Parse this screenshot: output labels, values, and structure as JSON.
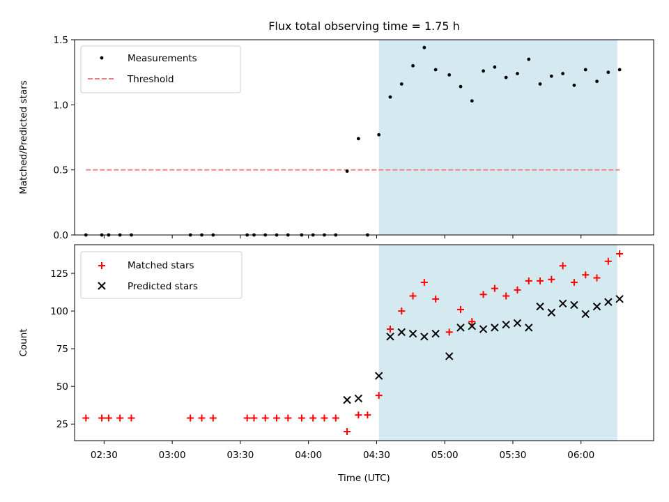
{
  "chart_data": [
    {
      "type": "scatter",
      "title": "Flux total observing time = 1.75 h",
      "xlabel": "",
      "ylabel": "Matched/Predicted stars",
      "xlim": [
        "02:17",
        "06:32"
      ],
      "ylim": [
        0,
        1.5
      ],
      "yticks": [
        "0.0",
        "0.5",
        "1.0",
        "1.5"
      ],
      "shaded_region": [
        "04:31",
        "06:16"
      ],
      "shade_color": "#d4eaf0",
      "legend_position": "upper left",
      "series": [
        {
          "name": "Measurements",
          "marker": "dot",
          "color": "#000000",
          "points": [
            [
              "02:22",
              0
            ],
            [
              "02:29",
              0
            ],
            [
              "02:32",
              0
            ],
            [
              "02:37",
              0
            ],
            [
              "02:42",
              0
            ],
            [
              "03:08",
              0
            ],
            [
              "03:13",
              0
            ],
            [
              "03:18",
              0
            ],
            [
              "03:33",
              0
            ],
            [
              "03:36",
              0
            ],
            [
              "03:41",
              0
            ],
            [
              "03:46",
              0
            ],
            [
              "03:51",
              0
            ],
            [
              "03:57",
              0
            ],
            [
              "04:02",
              0
            ],
            [
              "04:07",
              0
            ],
            [
              "04:12",
              0
            ],
            [
              "04:17",
              0.49
            ],
            [
              "04:22",
              0.74
            ],
            [
              "04:26",
              0.0
            ],
            [
              "04:31",
              0.77
            ],
            [
              "04:36",
              1.06
            ],
            [
              "04:41",
              1.16
            ],
            [
              "04:46",
              1.3
            ],
            [
              "04:51",
              1.44
            ],
            [
              "04:56",
              1.27
            ],
            [
              "05:02",
              1.23
            ],
            [
              "05:07",
              1.14
            ],
            [
              "05:12",
              1.03
            ],
            [
              "05:17",
              1.26
            ],
            [
              "05:22",
              1.29
            ],
            [
              "05:27",
              1.21
            ],
            [
              "05:32",
              1.24
            ],
            [
              "05:37",
              1.35
            ],
            [
              "05:42",
              1.16
            ],
            [
              "05:47",
              1.22
            ],
            [
              "05:52",
              1.24
            ],
            [
              "05:57",
              1.15
            ],
            [
              "06:02",
              1.27
            ],
            [
              "06:07",
              1.18
            ],
            [
              "06:12",
              1.25
            ],
            [
              "06:17",
              1.27
            ]
          ]
        },
        {
          "name": "Threshold",
          "marker": "dashed-line",
          "color": "#f08080",
          "points": [
            [
              "02:22",
              0.5
            ],
            [
              "06:17",
              0.5
            ]
          ]
        }
      ]
    },
    {
      "type": "scatter",
      "title": "",
      "xlabel": "Time (UTC)",
      "ylabel": "Count",
      "xlim": [
        "02:17",
        "06:32"
      ],
      "ylim": [
        14,
        144
      ],
      "yticks": [
        "25",
        "50",
        "75",
        "100",
        "125"
      ],
      "xticks": [
        "02:30",
        "03:00",
        "03:30",
        "04:00",
        "04:30",
        "05:00",
        "05:30",
        "06:00"
      ],
      "shaded_region": [
        "04:31",
        "06:16"
      ],
      "shade_color": "#d4eaf0",
      "legend_position": "upper left",
      "series": [
        {
          "name": "Matched stars",
          "marker": "plus",
          "color": "#ff0000",
          "points": [
            [
              "02:22",
              29
            ],
            [
              "02:29",
              29
            ],
            [
              "02:32",
              29
            ],
            [
              "02:37",
              29
            ],
            [
              "02:42",
              29
            ],
            [
              "03:08",
              29
            ],
            [
              "03:13",
              29
            ],
            [
              "03:18",
              29
            ],
            [
              "03:33",
              29
            ],
            [
              "03:36",
              29
            ],
            [
              "03:41",
              29
            ],
            [
              "03:46",
              29
            ],
            [
              "03:51",
              29
            ],
            [
              "03:57",
              29
            ],
            [
              "04:02",
              29
            ],
            [
              "04:07",
              29
            ],
            [
              "04:12",
              29
            ],
            [
              "04:17",
              20
            ],
            [
              "04:22",
              31
            ],
            [
              "04:26",
              31
            ],
            [
              "04:31",
              44
            ],
            [
              "04:36",
              88
            ],
            [
              "04:41",
              100
            ],
            [
              "04:46",
              110
            ],
            [
              "04:51",
              119
            ],
            [
              "04:56",
              108
            ],
            [
              "05:02",
              86
            ],
            [
              "05:07",
              101
            ],
            [
              "05:12",
              93
            ],
            [
              "05:17",
              111
            ],
            [
              "05:22",
              115
            ],
            [
              "05:27",
              110
            ],
            [
              "05:32",
              114
            ],
            [
              "05:37",
              120
            ],
            [
              "05:42",
              120
            ],
            [
              "05:47",
              121
            ],
            [
              "05:52",
              130
            ],
            [
              "05:57",
              119
            ],
            [
              "06:02",
              124
            ],
            [
              "06:07",
              122
            ],
            [
              "06:12",
              133
            ],
            [
              "06:17",
              138
            ]
          ]
        },
        {
          "name": "Predicted stars",
          "marker": "x",
          "color": "#000000",
          "points": [
            [
              "04:17",
              41
            ],
            [
              "04:22",
              42
            ],
            [
              "04:31",
              57
            ],
            [
              "04:36",
              83
            ],
            [
              "04:41",
              86
            ],
            [
              "04:46",
              85
            ],
            [
              "04:51",
              83
            ],
            [
              "04:56",
              85
            ],
            [
              "05:02",
              70
            ],
            [
              "05:07",
              89
            ],
            [
              "05:12",
              90
            ],
            [
              "05:17",
              88
            ],
            [
              "05:22",
              89
            ],
            [
              "05:27",
              91
            ],
            [
              "05:32",
              92
            ],
            [
              "05:37",
              89
            ],
            [
              "05:42",
              103
            ],
            [
              "05:47",
              99
            ],
            [
              "05:52",
              105
            ],
            [
              "05:57",
              104
            ],
            [
              "06:02",
              98
            ],
            [
              "06:07",
              103
            ],
            [
              "06:12",
              106
            ],
            [
              "06:17",
              108
            ]
          ]
        }
      ]
    }
  ]
}
